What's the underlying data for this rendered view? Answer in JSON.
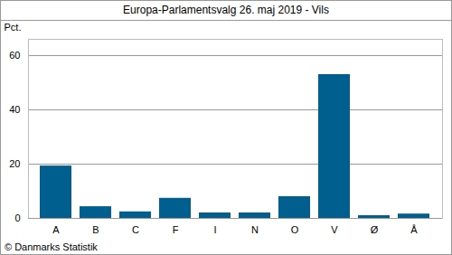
{
  "chart_data": {
    "type": "bar",
    "title": "Europa-Parlamentsvalg 26. maj 2019 - Vils",
    "caption": "© Danmarks Statistik",
    "y_label": "Pct.",
    "categories": [
      "A",
      "B",
      "C",
      "F",
      "I",
      "N",
      "O",
      "V",
      "Ø",
      "Å"
    ],
    "values": [
      19.3,
      4.3,
      2.4,
      7.4,
      2.0,
      2.0,
      8.0,
      53.0,
      1.0,
      1.6
    ],
    "color": "#005f8f",
    "ylim": [
      0,
      66
    ],
    "yticks": [
      0,
      20,
      40,
      60
    ],
    "grid": true
  }
}
